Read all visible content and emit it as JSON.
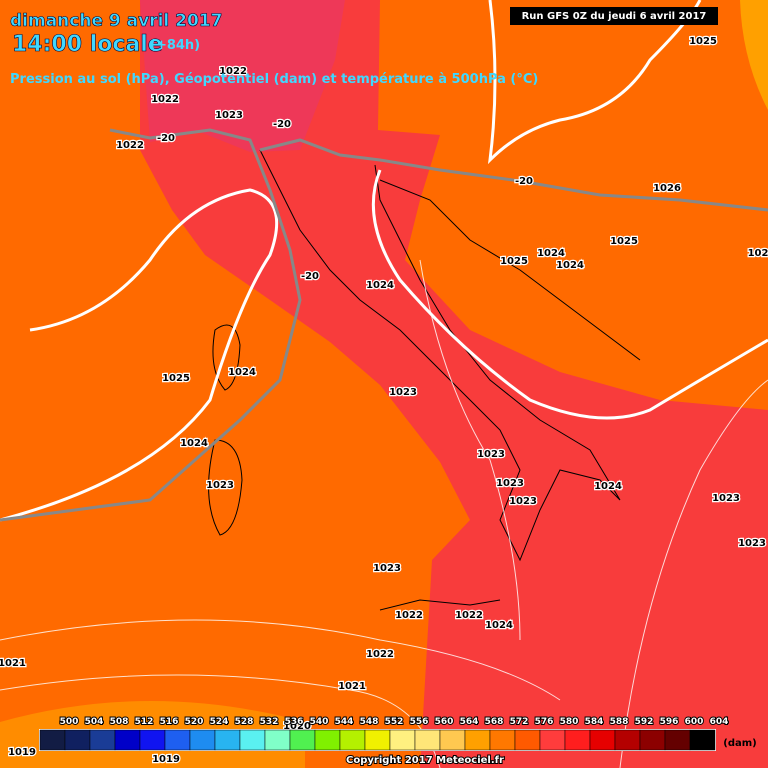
{
  "header": {
    "date": "dimanche 9 avril 2017",
    "time": "14:00 locale",
    "lead": "(+84h)",
    "subtitle": "Pression au sol (hPa), Géopotentiel (dam) et température à 500hPa (°C)",
    "run": "Run GFS 0Z du jeudi 6 avril 2017"
  },
  "map": {
    "isobar_labels": [
      "1025",
      "1022",
      "1022",
      "1023",
      "-20",
      "-20",
      "1022",
      "-20",
      "1026",
      "1025",
      "1024",
      "1025",
      "1024",
      "102",
      "-20",
      "1024",
      "1025",
      "1024",
      "1023",
      "1024",
      "1023",
      "1023",
      "1024",
      "1023",
      "1023",
      "1023",
      "1023",
      "1023",
      "1022",
      "1022",
      "1024",
      "1021",
      "1022",
      "1021",
      "1019",
      "1019",
      "1020"
    ]
  },
  "legend": {
    "values": [
      500,
      504,
      508,
      512,
      516,
      520,
      524,
      528,
      532,
      536,
      540,
      544,
      548,
      552,
      556,
      560,
      564,
      568,
      572,
      576,
      580,
      584,
      588,
      592,
      596,
      600,
      604
    ],
    "colors": [
      "#121c44",
      "#102060",
      "#1a3c96",
      "#0000c8",
      "#1014f0",
      "#1e5ff0",
      "#1e8cf0",
      "#28b4f0",
      "#5af0f0",
      "#80ffc8",
      "#50f050",
      "#80f000",
      "#b4f000",
      "#f0f000",
      "#fff080",
      "#ffe678",
      "#ffc850",
      "#ffa000",
      "#ff7800",
      "#ff5a00",
      "#ff3c3c",
      "#ff1e1e",
      "#e60000",
      "#b40000",
      "#8c0000",
      "#640000",
      "#000000"
    ],
    "unit": "(dam)"
  },
  "footer": {
    "copyright": "Copyright 2017 Meteociel.fr"
  }
}
